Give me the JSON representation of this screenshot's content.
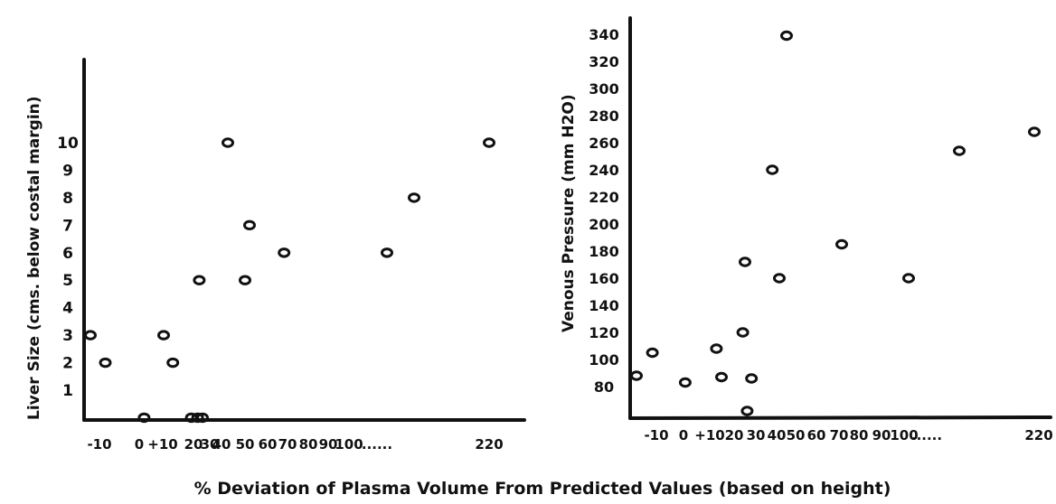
{
  "figure_caption": "% Deviation of Plasma Volume From Predicted Values (based on height)",
  "chart_data": [
    {
      "type": "scatter",
      "title": "",
      "xlabel": "",
      "ylabel": "Liver Size (cms. below costal margin)",
      "x_ticks": [
        "-10",
        "0",
        "+10",
        "20",
        "30",
        "40",
        "50",
        "60",
        "70",
        "80",
        "90",
        "100",
        "......",
        "220"
      ],
      "y_ticks": [
        "1",
        "2",
        "3",
        "4",
        "5",
        "6",
        "7",
        "8",
        "9",
        "10"
      ],
      "ylim": [
        0,
        11
      ],
      "x_axis_break": {
        "after": 100,
        "resumes_at": 220
      },
      "grid": false,
      "points": [
        {
          "x": -15,
          "y": 3
        },
        {
          "x": -9,
          "y": 2
        },
        {
          "x": 1,
          "y": 0
        },
        {
          "x": 10,
          "y": 3
        },
        {
          "x": 13,
          "y": 2
        },
        {
          "x": 19,
          "y": 0
        },
        {
          "x": 22,
          "y": 0
        },
        {
          "x": 25,
          "y": 0
        },
        {
          "x": 23,
          "y": 5
        },
        {
          "x": 35,
          "y": 10
        },
        {
          "x": 40,
          "y": 5
        },
        {
          "x": 42,
          "y": 7
        },
        {
          "x": 57,
          "y": 6
        },
        {
          "x": 90,
          "y": 6
        },
        {
          "x": 100,
          "y": 8
        },
        {
          "x": 220,
          "y": 10
        }
      ]
    },
    {
      "type": "scatter",
      "title": "",
      "xlabel": "",
      "ylabel": "Venous Pressure (mm H2O)",
      "x_ticks": [
        "-10",
        "0",
        "+10",
        "20",
        "30",
        "40",
        "50",
        "60",
        "70",
        "80",
        "90",
        "100",
        "......",
        "220"
      ],
      "y_ticks": [
        "80",
        "100",
        "120",
        "140",
        "160",
        "180",
        "200",
        "220",
        "240",
        "260",
        "280",
        "300",
        "320",
        "340"
      ],
      "ylim": [
        60,
        350
      ],
      "x_axis_break": {
        "after": 100,
        "resumes_at": 220
      },
      "grid": false,
      "points": [
        {
          "x": -20,
          "y": 88
        },
        {
          "x": -12,
          "y": 105
        },
        {
          "x": 1,
          "y": 83
        },
        {
          "x": 13,
          "y": 108
        },
        {
          "x": 15,
          "y": 87
        },
        {
          "x": 24,
          "y": 120
        },
        {
          "x": 25,
          "y": 172
        },
        {
          "x": 26,
          "y": 62
        },
        {
          "x": 28,
          "y": 86
        },
        {
          "x": 37,
          "y": 240
        },
        {
          "x": 40,
          "y": 160
        },
        {
          "x": 44,
          "y": 339
        },
        {
          "x": 60,
          "y": 185
        },
        {
          "x": 90,
          "y": 160
        },
        {
          "x": 107,
          "y": 254
        },
        {
          "x": 220,
          "y": 268
        }
      ]
    }
  ]
}
